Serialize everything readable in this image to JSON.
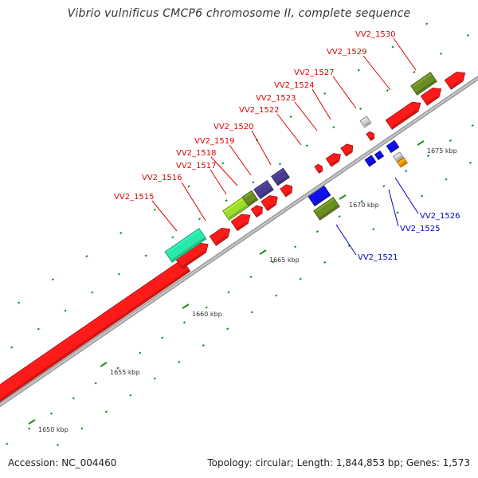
{
  "title": "Vibrio vulnificus CMCP6 chromosome II, complete sequence",
  "accession": "Accession: NC_004460",
  "topology": "Topology: circular; Length: 1,844,853 bp; Genes: 1,573",
  "colors": {
    "forward_label": "#dd0000",
    "reverse_label": "#0000cc",
    "backbone": "#9a9a9a",
    "tick": "#1a8c1a",
    "red": "#ff1a1a",
    "olive": "#6b8e23",
    "purple": "#4b3c8f",
    "blue": "#1010ee",
    "teal": "#2ae8a8",
    "lime": "#9bdf2a",
    "gray": "#cfcfcf",
    "orange": "#ff9900"
  },
  "ticks": [
    "1650 kbp",
    "1655 kbp",
    "1660 kbp",
    "1665 kbp",
    "1670 kbp",
    "1675 kbp"
  ],
  "gene_labels": {
    "forward": [
      "VV2_1515",
      "VV2_1516",
      "VV2_1517",
      "VV2_1518",
      "VV2_1519",
      "VV2_1520",
      "VV2_1522",
      "VV2_1523",
      "VV2_1524",
      "VV2_1527",
      "VV2_1529",
      "VV2_1530"
    ],
    "reverse": [
      "VV2_1521",
      "VV2_1525",
      "VV2_1526"
    ]
  }
}
